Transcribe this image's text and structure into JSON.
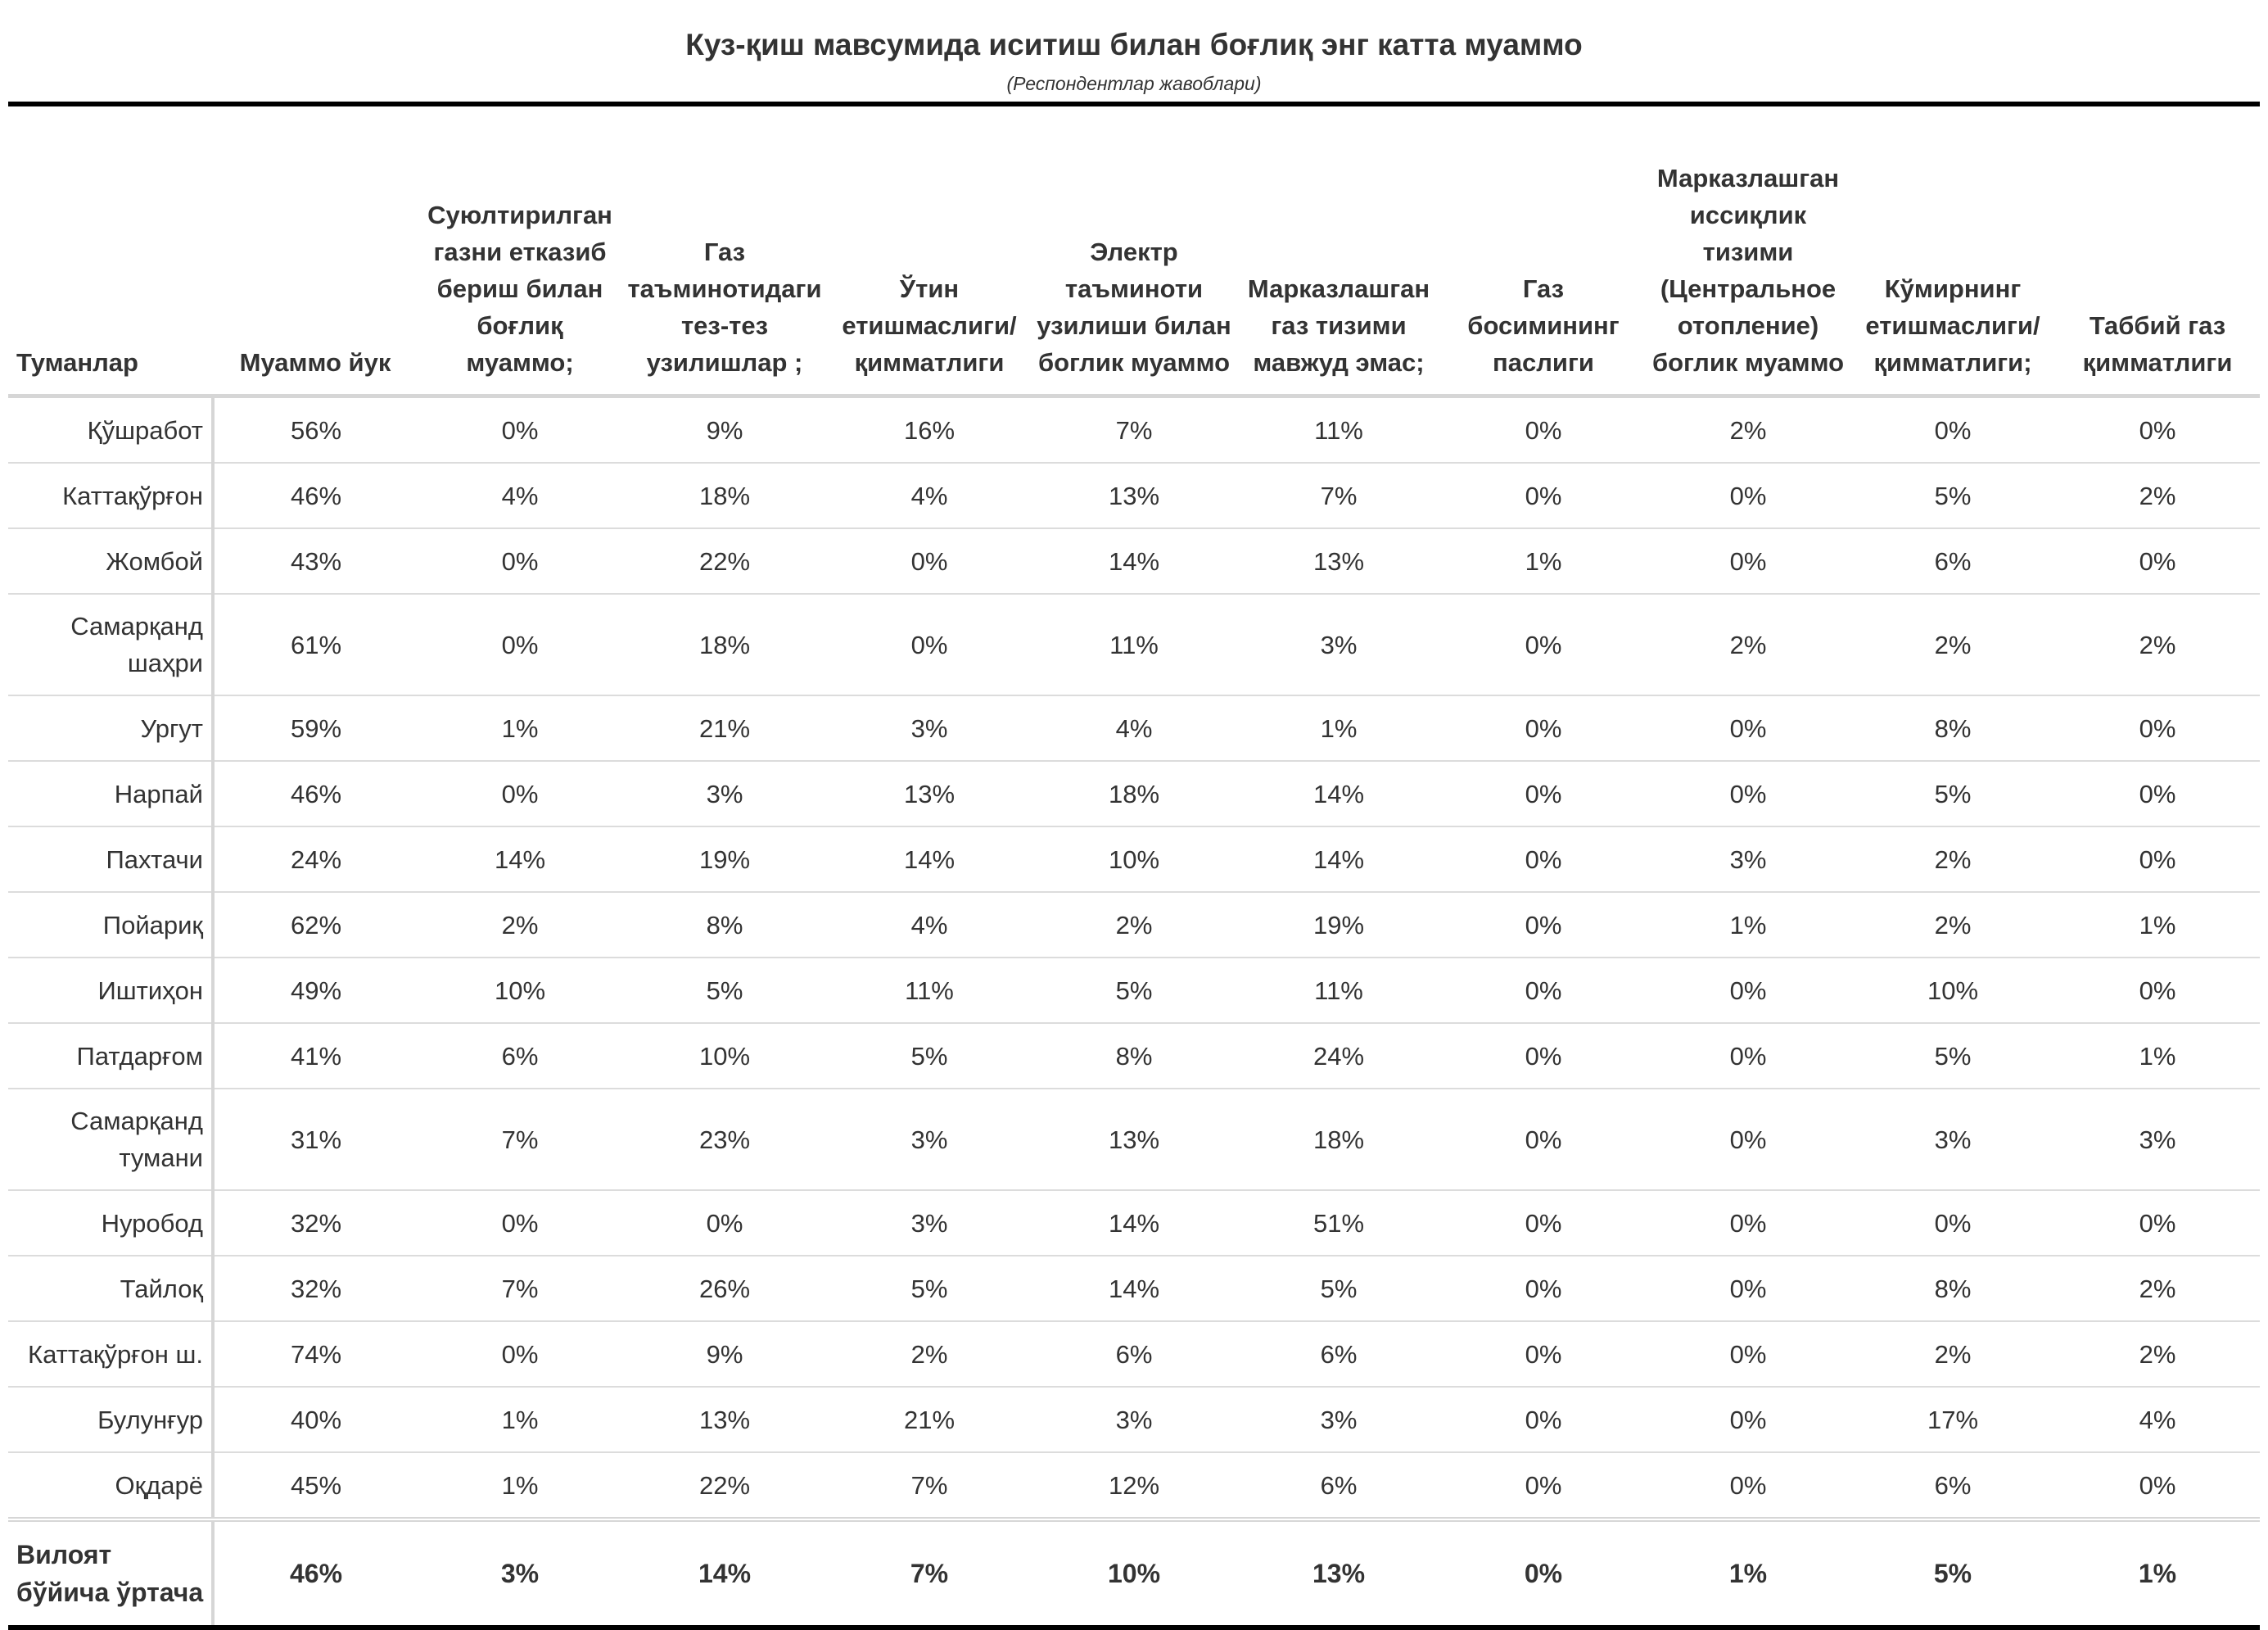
{
  "title": "Куз-қиш мавсумида иситиш билан боғлиқ энг катта муаммо",
  "subtitle": "(Респондентлар жавоблари)",
  "chart_data": {
    "type": "table",
    "columns": [
      "Туманлар",
      "Муаммо йук",
      "Суюлтирилган газни етказиб бериш билан боғлиқ муаммо;",
      "Газ таъминотидаги тез-тез узилишлар ;",
      "Ўтин етишмаслиги/ қимматлиги",
      "Электр таъминоти узилиши билан боглик муаммо",
      "Марказлашган газ тизими мавжуд эмас;",
      "Газ босимининг паслиги",
      "Марказлашган иссиқлик тизими (Центральное отопление) боглик муаммо",
      "Кўмирнинг етишмаслиги/ қимматлиги;",
      "Таббий газ қимматлиги"
    ],
    "rows": [
      {
        "label": "Қўшработ",
        "values": [
          "56%",
          "0%",
          "9%",
          "16%",
          "7%",
          "11%",
          "0%",
          "2%",
          "0%",
          "0%"
        ]
      },
      {
        "label": "Каттақўрғон",
        "values": [
          "46%",
          "4%",
          "18%",
          "4%",
          "13%",
          "7%",
          "0%",
          "0%",
          "5%",
          "2%"
        ]
      },
      {
        "label": "Жомбой",
        "values": [
          "43%",
          "0%",
          "22%",
          "0%",
          "14%",
          "13%",
          "1%",
          "0%",
          "6%",
          "0%"
        ]
      },
      {
        "label": "Самарқанд шаҳри",
        "values": [
          "61%",
          "0%",
          "18%",
          "0%",
          "11%",
          "3%",
          "0%",
          "2%",
          "2%",
          "2%"
        ]
      },
      {
        "label": "Ургут",
        "values": [
          "59%",
          "1%",
          "21%",
          "3%",
          "4%",
          "1%",
          "0%",
          "0%",
          "8%",
          "0%"
        ]
      },
      {
        "label": "Нарпай",
        "values": [
          "46%",
          "0%",
          "3%",
          "13%",
          "18%",
          "14%",
          "0%",
          "0%",
          "5%",
          "0%"
        ]
      },
      {
        "label": "Пахтачи",
        "values": [
          "24%",
          "14%",
          "19%",
          "14%",
          "10%",
          "14%",
          "0%",
          "3%",
          "2%",
          "0%"
        ]
      },
      {
        "label": "Пойариқ",
        "values": [
          "62%",
          "2%",
          "8%",
          "4%",
          "2%",
          "19%",
          "0%",
          "1%",
          "2%",
          "1%"
        ]
      },
      {
        "label": "Иштиҳон",
        "values": [
          "49%",
          "10%",
          "5%",
          "11%",
          "5%",
          "11%",
          "0%",
          "0%",
          "10%",
          "0%"
        ]
      },
      {
        "label": "Патдарғом",
        "values": [
          "41%",
          "6%",
          "10%",
          "5%",
          "8%",
          "24%",
          "0%",
          "0%",
          "5%",
          "1%"
        ]
      },
      {
        "label": "Самарқанд тумани",
        "values": [
          "31%",
          "7%",
          "23%",
          "3%",
          "13%",
          "18%",
          "0%",
          "0%",
          "3%",
          "3%"
        ]
      },
      {
        "label": "Нуробод",
        "values": [
          "32%",
          "0%",
          "0%",
          "3%",
          "14%",
          "51%",
          "0%",
          "0%",
          "0%",
          "0%"
        ]
      },
      {
        "label": "Тайлоқ",
        "values": [
          "32%",
          "7%",
          "26%",
          "5%",
          "14%",
          "5%",
          "0%",
          "0%",
          "8%",
          "2%"
        ]
      },
      {
        "label": "Каттақўрғон ш.",
        "values": [
          "74%",
          "0%",
          "9%",
          "2%",
          "6%",
          "6%",
          "0%",
          "0%",
          "2%",
          "2%"
        ]
      },
      {
        "label": "Булунғур",
        "values": [
          "40%",
          "1%",
          "13%",
          "21%",
          "3%",
          "3%",
          "0%",
          "0%",
          "17%",
          "4%"
        ]
      },
      {
        "label": "Оқдарё",
        "values": [
          "45%",
          "1%",
          "22%",
          "7%",
          "12%",
          "6%",
          "0%",
          "0%",
          "6%",
          "0%"
        ]
      }
    ],
    "total": {
      "label": "Вилоят бўйича ўртача",
      "values": [
        "46%",
        "3%",
        "14%",
        "7%",
        "10%",
        "13%",
        "0%",
        "1%",
        "5%",
        "1%"
      ]
    }
  }
}
